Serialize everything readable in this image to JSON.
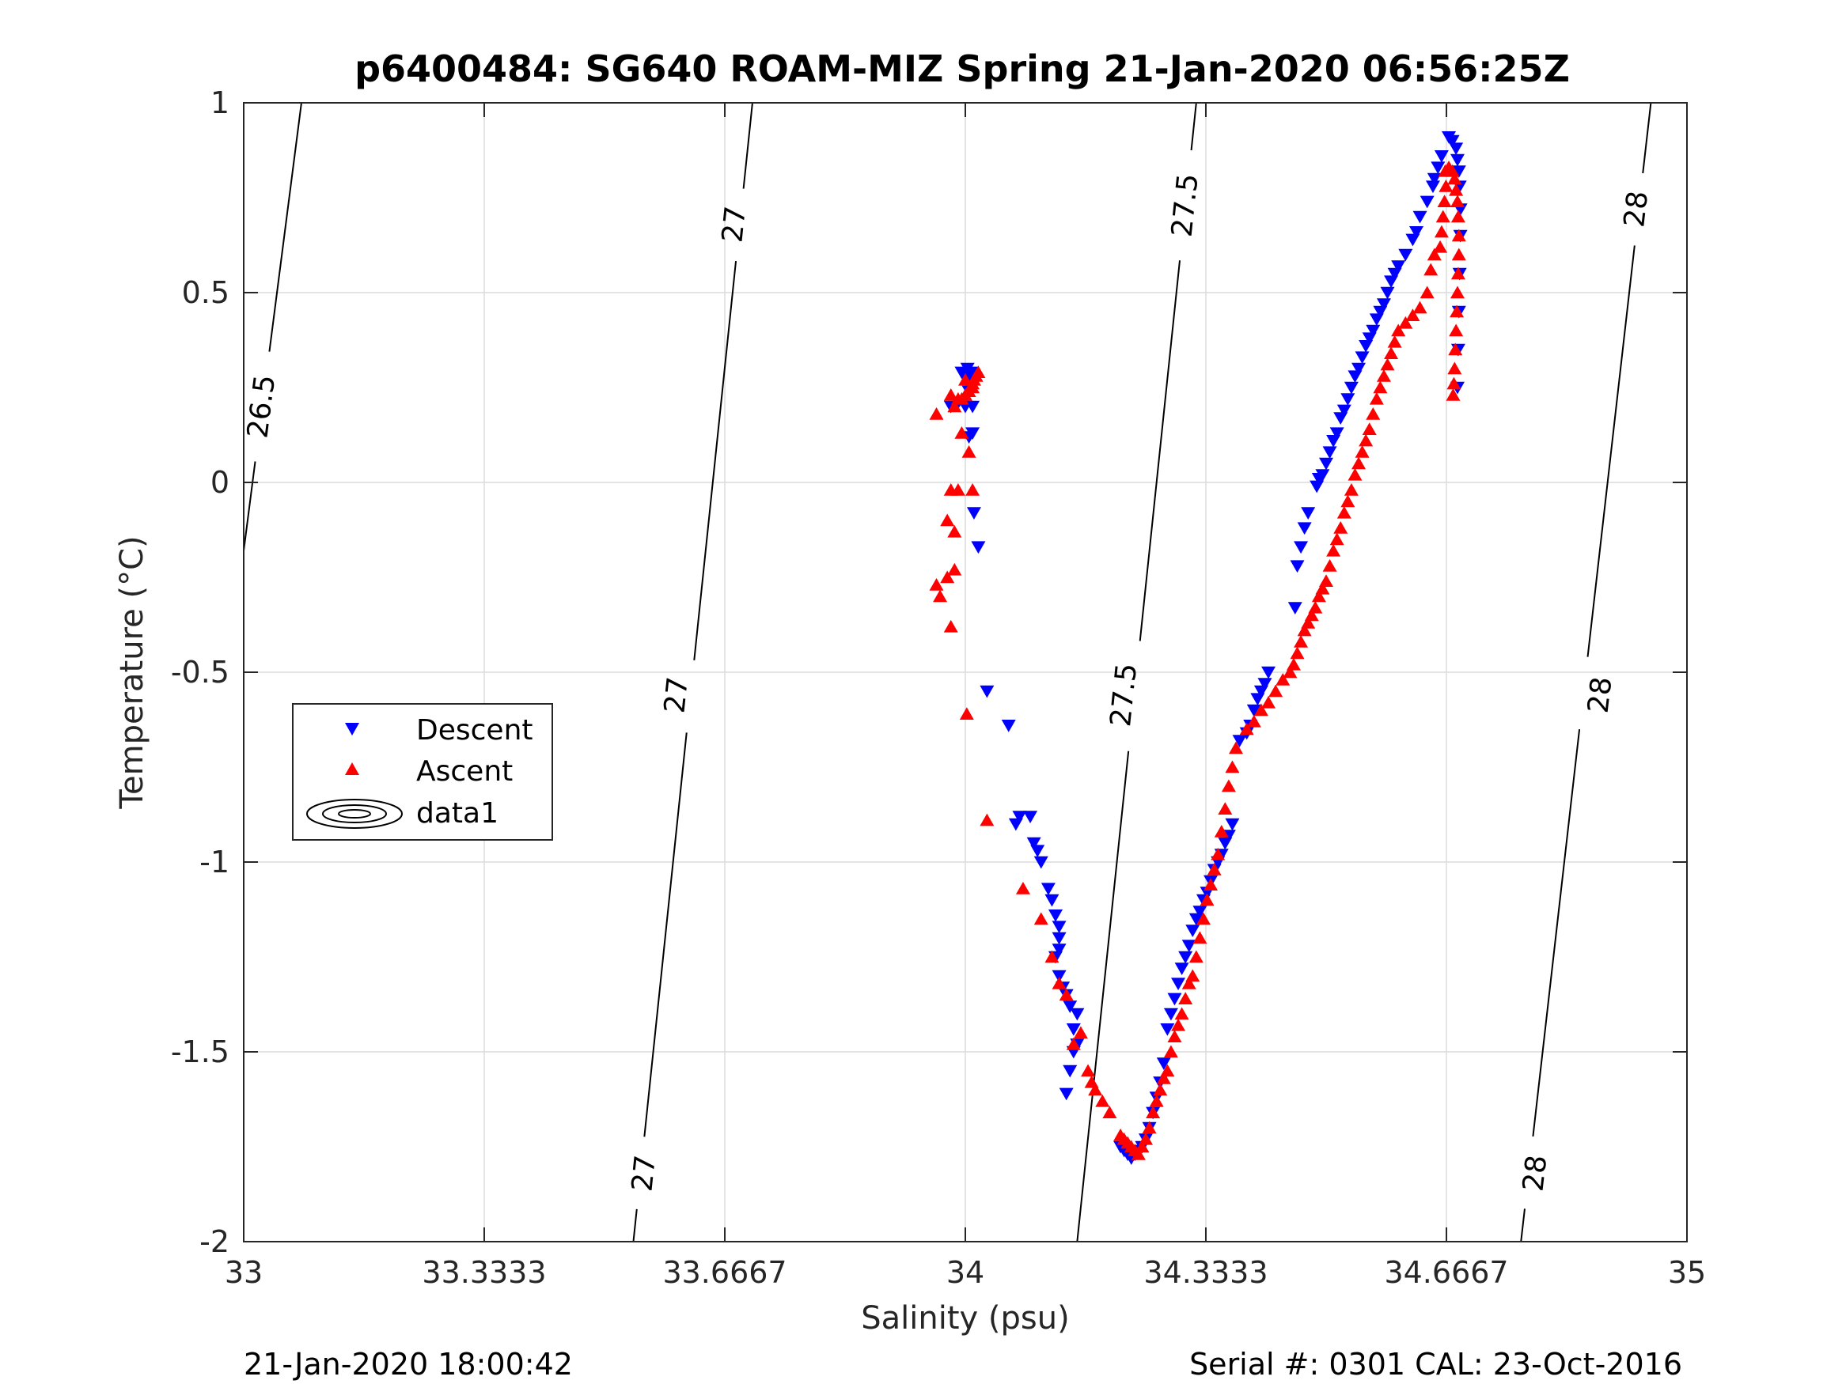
{
  "chart_data": {
    "type": "scatter",
    "title": "p6400484: SG640 ROAM-MIZ Spring 21-Jan-2020 06:56:25Z",
    "xlabel": "Salinity (psu)",
    "ylabel": "Temperature (°C)",
    "xlim": [
      33,
      35
    ],
    "ylim": [
      -2,
      1
    ],
    "xticks": [
      33,
      33.3333,
      33.6667,
      34,
      34.3333,
      34.6667,
      35
    ],
    "xtick_labels": [
      "33",
      "33.3333",
      "33.6667",
      "34",
      "34.3333",
      "34.6667",
      "35"
    ],
    "yticks": [
      -2,
      -1.5,
      -1,
      -0.5,
      0,
      0.5,
      1
    ],
    "ytick_labels": [
      "-2",
      "-1.5",
      "-1",
      "-0.5",
      "0",
      "0.5",
      "1"
    ],
    "grid": true,
    "legend_position": "middle-left",
    "footer_left": "21-Jan-2020 18:00:42",
    "footer_right": "Serial #: 0301  CAL: 23-Oct-2016",
    "series": [
      {
        "name": "Descent",
        "marker": "triangle-down",
        "color": "#0000ff",
        "points": [
          [
            34.67,
            0.91
          ],
          [
            34.675,
            0.9
          ],
          [
            34.68,
            0.88
          ],
          [
            34.682,
            0.85
          ],
          [
            34.684,
            0.82
          ],
          [
            34.685,
            0.78
          ],
          [
            34.686,
            0.72
          ],
          [
            34.686,
            0.65
          ],
          [
            34.685,
            0.55
          ],
          [
            34.684,
            0.45
          ],
          [
            34.683,
            0.35
          ],
          [
            34.682,
            0.25
          ],
          [
            34.66,
            0.86
          ],
          [
            34.655,
            0.83
          ],
          [
            34.65,
            0.8
          ],
          [
            34.648,
            0.78
          ],
          [
            34.64,
            0.74
          ],
          [
            34.63,
            0.7
          ],
          [
            34.625,
            0.66
          ],
          [
            34.62,
            0.64
          ],
          [
            34.61,
            0.6
          ],
          [
            34.6,
            0.57
          ],
          [
            34.595,
            0.55
          ],
          [
            34.59,
            0.53
          ],
          [
            34.585,
            0.5
          ],
          [
            34.58,
            0.47
          ],
          [
            34.575,
            0.45
          ],
          [
            34.57,
            0.43
          ],
          [
            34.565,
            0.4
          ],
          [
            34.56,
            0.38
          ],
          [
            34.555,
            0.36
          ],
          [
            34.55,
            0.33
          ],
          [
            34.545,
            0.3
          ],
          [
            34.54,
            0.28
          ],
          [
            34.535,
            0.25
          ],
          [
            34.53,
            0.22
          ],
          [
            34.525,
            0.19
          ],
          [
            34.52,
            0.17
          ],
          [
            34.515,
            0.13
          ],
          [
            34.51,
            0.11
          ],
          [
            34.505,
            0.08
          ],
          [
            34.5,
            0.05
          ],
          [
            34.495,
            0.02
          ],
          [
            34.49,
            0.01
          ],
          [
            34.487,
            -0.01
          ],
          [
            34.475,
            -0.08
          ],
          [
            34.47,
            -0.12
          ],
          [
            34.465,
            -0.17
          ],
          [
            34.46,
            -0.22
          ],
          [
            34.457,
            -0.33
          ],
          [
            34.42,
            -0.5
          ],
          [
            34.415,
            -0.53
          ],
          [
            34.41,
            -0.55
          ],
          [
            34.405,
            -0.57
          ],
          [
            34.4,
            -0.6
          ],
          [
            34.395,
            -0.64
          ],
          [
            34.39,
            -0.66
          ],
          [
            34.38,
            -0.68
          ],
          [
            34.37,
            -0.9
          ],
          [
            34.365,
            -0.93
          ],
          [
            34.36,
            -0.95
          ],
          [
            34.355,
            -0.98
          ],
          [
            34.35,
            -1.0
          ],
          [
            34.345,
            -1.02
          ],
          [
            34.34,
            -1.05
          ],
          [
            34.335,
            -1.08
          ],
          [
            34.33,
            -1.1
          ],
          [
            34.325,
            -1.13
          ],
          [
            34.32,
            -1.15
          ],
          [
            34.315,
            -1.18
          ],
          [
            34.31,
            -1.22
          ],
          [
            34.305,
            -1.25
          ],
          [
            34.3,
            -1.28
          ],
          [
            34.295,
            -1.32
          ],
          [
            34.29,
            -1.36
          ],
          [
            34.285,
            -1.4
          ],
          [
            34.28,
            -1.44
          ],
          [
            34.275,
            -1.53
          ],
          [
            34.27,
            -1.58
          ],
          [
            34.265,
            -1.62
          ],
          [
            34.26,
            -1.66
          ],
          [
            34.255,
            -1.7
          ],
          [
            34.25,
            -1.73
          ],
          [
            34.245,
            -1.75
          ],
          [
            34.24,
            -1.76
          ],
          [
            34.235,
            -1.77
          ],
          [
            34.23,
            -1.78
          ],
          [
            34.225,
            -1.77
          ],
          [
            34.22,
            -1.76
          ],
          [
            34.215,
            -1.75
          ],
          [
            34.155,
            -1.48
          ],
          [
            34.15,
            -1.5
          ],
          [
            34.145,
            -1.55
          ],
          [
            34.14,
            -1.61
          ],
          [
            34.15,
            -1.44
          ],
          [
            34.155,
            -1.4
          ],
          [
            34.145,
            -1.38
          ],
          [
            34.14,
            -1.35
          ],
          [
            34.135,
            -1.33
          ],
          [
            34.13,
            -1.3
          ],
          [
            34.125,
            -1.25
          ],
          [
            34.13,
            -1.23
          ],
          [
            34.13,
            -1.2
          ],
          [
            34.13,
            -1.17
          ],
          [
            34.125,
            -1.14
          ],
          [
            34.12,
            -1.1
          ],
          [
            34.115,
            -1.07
          ],
          [
            34.105,
            -1.0
          ],
          [
            34.1,
            -0.97
          ],
          [
            34.095,
            -0.95
          ],
          [
            34.09,
            -0.88
          ],
          [
            34.075,
            -0.88
          ],
          [
            34.07,
            -0.9
          ],
          [
            34.06,
            -0.64
          ],
          [
            34.03,
            -0.55
          ],
          [
            34.018,
            -0.17
          ],
          [
            34.012,
            -0.08
          ],
          [
            34.01,
            0.13
          ],
          [
            34.005,
            0.12
          ],
          [
            34.01,
            0.2
          ],
          [
            34.0,
            0.2
          ],
          [
            33.99,
            0.21
          ],
          [
            33.98,
            0.2
          ],
          [
            34.005,
            0.24
          ],
          [
            34.01,
            0.26
          ],
          [
            34.0,
            0.28
          ],
          [
            33.995,
            0.29
          ],
          [
            34.003,
            0.3
          ],
          [
            34.008,
            0.29
          ],
          [
            34.002,
            0.27
          ]
        ]
      },
      {
        "name": "Ascent",
        "marker": "triangle-up",
        "color": "#ff0000",
        "points": [
          [
            34.665,
            0.82
          ],
          [
            34.67,
            0.83
          ],
          [
            34.675,
            0.82
          ],
          [
            34.678,
            0.8
          ],
          [
            34.68,
            0.77
          ],
          [
            34.682,
            0.74
          ],
          [
            34.683,
            0.7
          ],
          [
            34.684,
            0.65
          ],
          [
            34.684,
            0.6
          ],
          [
            34.683,
            0.55
          ],
          [
            34.682,
            0.5
          ],
          [
            34.681,
            0.45
          ],
          [
            34.68,
            0.4
          ],
          [
            34.679,
            0.35
          ],
          [
            34.678,
            0.3
          ],
          [
            34.677,
            0.26
          ],
          [
            34.676,
            0.23
          ],
          [
            34.666,
            0.78
          ],
          [
            34.664,
            0.74
          ],
          [
            34.662,
            0.7
          ],
          [
            34.66,
            0.66
          ],
          [
            34.658,
            0.62
          ],
          [
            34.65,
            0.6
          ],
          [
            34.645,
            0.56
          ],
          [
            34.64,
            0.5
          ],
          [
            34.63,
            0.46
          ],
          [
            34.62,
            0.44
          ],
          [
            34.61,
            0.42
          ],
          [
            34.6,
            0.4
          ],
          [
            34.595,
            0.37
          ],
          [
            34.59,
            0.34
          ],
          [
            34.585,
            0.31
          ],
          [
            34.58,
            0.28
          ],
          [
            34.575,
            0.25
          ],
          [
            34.57,
            0.22
          ],
          [
            34.565,
            0.18
          ],
          [
            34.56,
            0.14
          ],
          [
            34.555,
            0.11
          ],
          [
            34.55,
            0.08
          ],
          [
            34.545,
            0.05
          ],
          [
            34.54,
            0.02
          ],
          [
            34.535,
            -0.02
          ],
          [
            34.53,
            -0.05
          ],
          [
            34.525,
            -0.08
          ],
          [
            34.52,
            -0.12
          ],
          [
            34.515,
            -0.15
          ],
          [
            34.51,
            -0.18
          ],
          [
            34.505,
            -0.22
          ],
          [
            34.5,
            -0.26
          ],
          [
            34.495,
            -0.28
          ],
          [
            34.49,
            -0.3
          ],
          [
            34.485,
            -0.33
          ],
          [
            34.48,
            -0.35
          ],
          [
            34.475,
            -0.37
          ],
          [
            34.47,
            -0.39
          ],
          [
            34.465,
            -0.42
          ],
          [
            34.46,
            -0.45
          ],
          [
            34.455,
            -0.48
          ],
          [
            34.45,
            -0.5
          ],
          [
            34.44,
            -0.52
          ],
          [
            34.43,
            -0.55
          ],
          [
            34.42,
            -0.58
          ],
          [
            34.41,
            -0.6
          ],
          [
            34.4,
            -0.63
          ],
          [
            34.39,
            -0.65
          ],
          [
            34.375,
            -0.7
          ],
          [
            34.37,
            -0.75
          ],
          [
            34.365,
            -0.8
          ],
          [
            34.36,
            -0.86
          ],
          [
            34.355,
            -0.92
          ],
          [
            34.35,
            -0.98
          ],
          [
            34.345,
            -1.02
          ],
          [
            34.34,
            -1.06
          ],
          [
            34.335,
            -1.1
          ],
          [
            34.33,
            -1.15
          ],
          [
            34.325,
            -1.2
          ],
          [
            34.32,
            -1.25
          ],
          [
            34.315,
            -1.3
          ],
          [
            34.31,
            -1.32
          ],
          [
            34.305,
            -1.36
          ],
          [
            34.3,
            -1.4
          ],
          [
            34.295,
            -1.43
          ],
          [
            34.29,
            -1.46
          ],
          [
            34.285,
            -1.5
          ],
          [
            34.28,
            -1.55
          ],
          [
            34.275,
            -1.57
          ],
          [
            34.27,
            -1.6
          ],
          [
            34.265,
            -1.63
          ],
          [
            34.26,
            -1.66
          ],
          [
            34.255,
            -1.7
          ],
          [
            34.25,
            -1.73
          ],
          [
            34.245,
            -1.75
          ],
          [
            34.24,
            -1.77
          ],
          [
            34.235,
            -1.76
          ],
          [
            34.23,
            -1.75
          ],
          [
            34.225,
            -1.74
          ],
          [
            34.22,
            -1.73
          ],
          [
            34.215,
            -1.72
          ],
          [
            34.2,
            -1.66
          ],
          [
            34.19,
            -1.63
          ],
          [
            34.18,
            -1.6
          ],
          [
            34.175,
            -1.58
          ],
          [
            34.17,
            -1.55
          ],
          [
            34.16,
            -1.45
          ],
          [
            34.15,
            -1.48
          ],
          [
            34.14,
            -1.35
          ],
          [
            34.13,
            -1.32
          ],
          [
            34.12,
            -1.25
          ],
          [
            34.105,
            -1.15
          ],
          [
            34.08,
            -1.07
          ],
          [
            34.03,
            -0.89
          ],
          [
            34.002,
            -0.61
          ],
          [
            33.98,
            -0.38
          ],
          [
            33.975,
            -0.25
          ],
          [
            33.985,
            -0.23
          ],
          [
            33.965,
            -0.3
          ],
          [
            33.96,
            -0.27
          ],
          [
            33.985,
            -0.13
          ],
          [
            33.975,
            -0.1
          ],
          [
            33.98,
            -0.02
          ],
          [
            33.99,
            -0.02
          ],
          [
            34.01,
            -0.02
          ],
          [
            34.005,
            0.08
          ],
          [
            33.995,
            0.13
          ],
          [
            33.96,
            0.18
          ],
          [
            33.985,
            0.2
          ],
          [
            33.99,
            0.22
          ],
          [
            34.0,
            0.23
          ],
          [
            34.01,
            0.25
          ],
          [
            34.015,
            0.28
          ],
          [
            34.018,
            0.29
          ],
          [
            34.01,
            0.26
          ],
          [
            34.005,
            0.24
          ],
          [
            33.995,
            0.22
          ],
          [
            33.98,
            0.23
          ],
          [
            34.0,
            0.27
          ],
          [
            34.012,
            0.27
          ]
        ]
      },
      {
        "name": "data1",
        "marker": "contour",
        "color": "#000000",
        "contours": [
          {
            "level": "26.5",
            "line": [
              [
                33,
                -0.18
              ],
              [
                33.08,
                1
              ]
            ],
            "labels": [
              [
                33.025,
                0.2
              ]
            ]
          },
          {
            "level": "27",
            "line": [
              [
                33.54,
                -2
              ],
              [
                33.705,
                1
              ]
            ],
            "labels": [
              [
                33.555,
                -1.82
              ],
              [
                33.6,
                -0.56
              ],
              [
                33.68,
                0.68
              ]
            ]
          },
          {
            "level": "27.5",
            "line": [
              [
                34.155,
                -2
              ],
              [
                34.32,
                1
              ]
            ],
            "labels": [
              [
                34.22,
                -0.56
              ],
              [
                34.305,
                0.73
              ]
            ]
          },
          {
            "level": "28",
            "line": [
              [
                34.77,
                -2
              ],
              [
                34.95,
                1
              ]
            ],
            "labels": [
              [
                34.79,
                -1.82
              ],
              [
                34.88,
                -0.56
              ],
              [
                34.93,
                0.72
              ]
            ]
          }
        ]
      }
    ]
  }
}
